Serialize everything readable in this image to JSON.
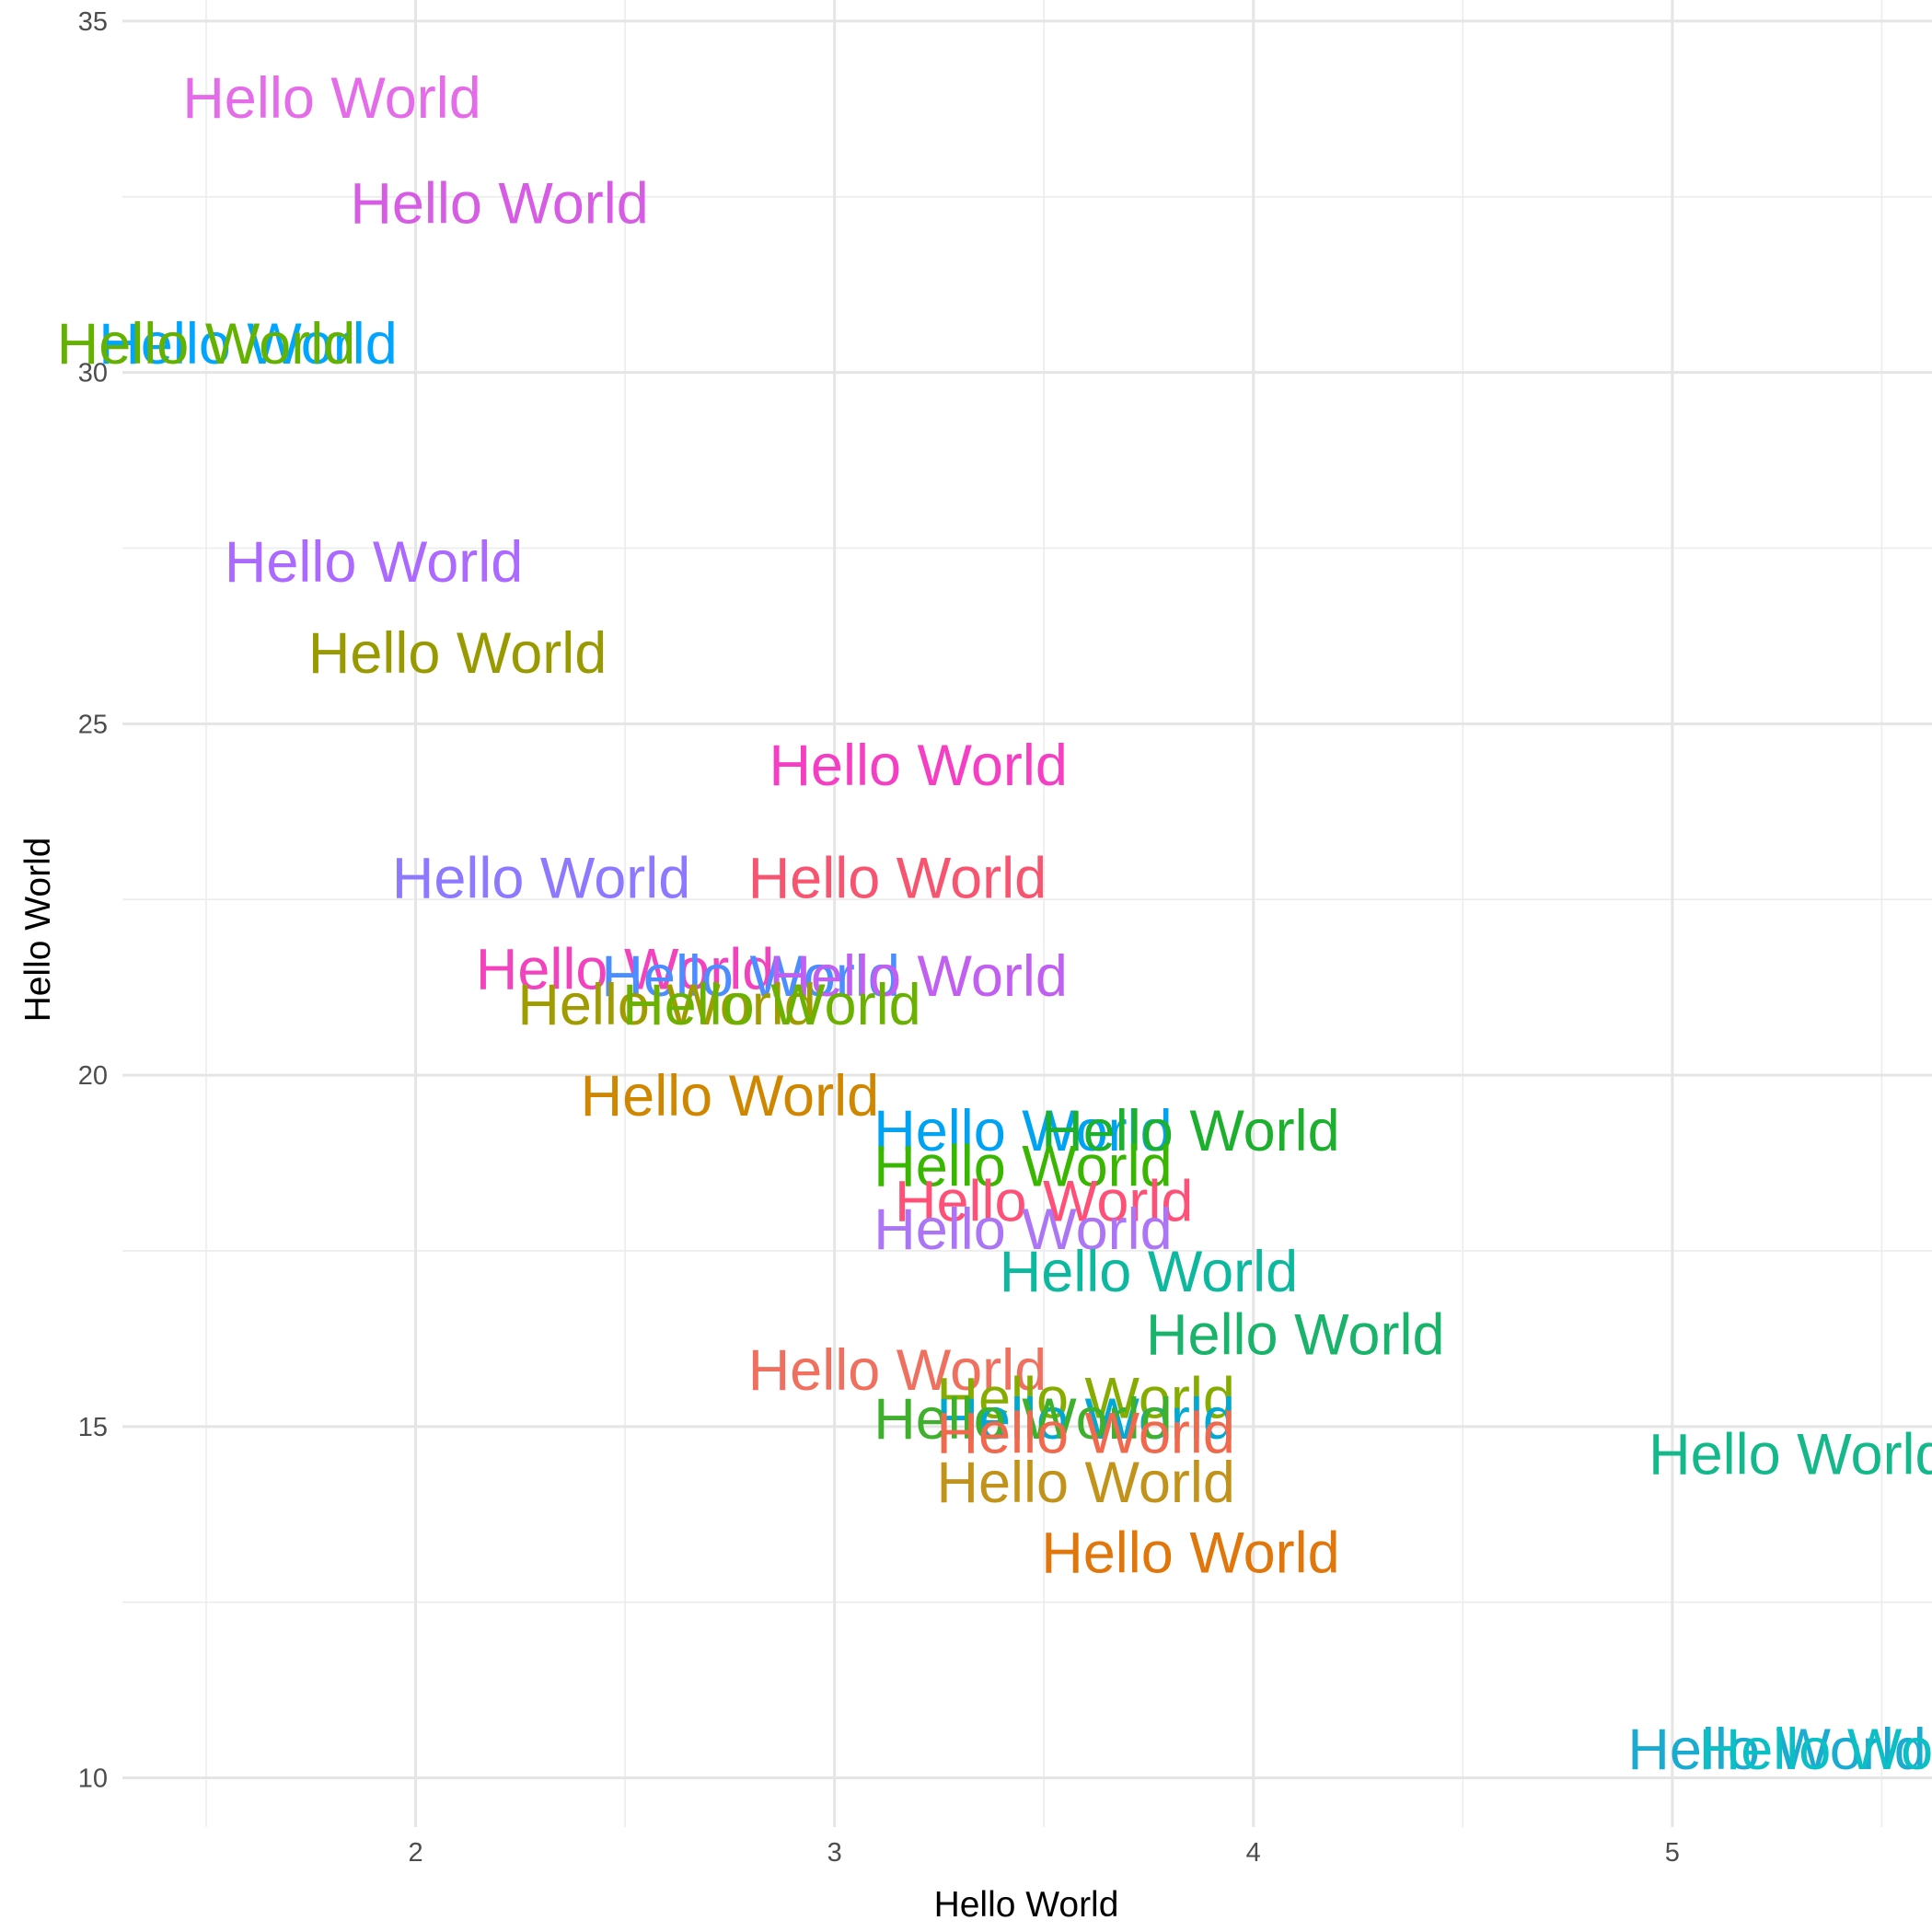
{
  "chart_data": {
    "type": "scatter",
    "title": "",
    "xlabel": "Hello World",
    "ylabel": "Hello World",
    "xlim": [
      1.3,
      5.62
    ],
    "ylim": [
      9.3,
      35.3
    ],
    "x_ticks": [
      2,
      3,
      4,
      5
    ],
    "y_ticks": [
      10,
      15,
      20,
      25,
      30,
      35
    ],
    "grid": true,
    "legend": "none",
    "points": [
      {
        "label": "Hello World",
        "x": 1.8,
        "y": 33.9,
        "color": "#E46CE8"
      },
      {
        "label": "Hello World",
        "x": 2.2,
        "y": 32.4,
        "color": "#D75CE4"
      },
      {
        "label": "Hello World",
        "x": 1.6,
        "y": 30.4,
        "color": "#00A5FF"
      },
      {
        "label": "Hello World",
        "x": 1.5,
        "y": 30.4,
        "color": "#64B200"
      },
      {
        "label": "Hello World",
        "x": 1.9,
        "y": 27.3,
        "color": "#AC69FF"
      },
      {
        "label": "Hello World",
        "x": 2.1,
        "y": 26.0,
        "color": "#999900"
      },
      {
        "label": "Hello World",
        "x": 3.2,
        "y": 24.4,
        "color": "#F53EC4"
      },
      {
        "label": "Hello World",
        "x": 2.3,
        "y": 22.8,
        "color": "#8E78FF"
      },
      {
        "label": "Hello World",
        "x": 3.15,
        "y": 22.8,
        "color": "#F6546F"
      },
      {
        "label": "Hello World",
        "x": 2.5,
        "y": 21.5,
        "color": "#F342BD"
      },
      {
        "label": "Hello World",
        "x": 2.8,
        "y": 21.4,
        "color": "#4C8DFF"
      },
      {
        "label": "Hello World",
        "x": 3.2,
        "y": 21.4,
        "color": "#C160F0"
      },
      {
        "label": "Hello World",
        "x": 2.6,
        "y": 21.0,
        "color": "#A09C00"
      },
      {
        "label": "Hello World",
        "x": 2.85,
        "y": 21.0,
        "color": "#6BB100"
      },
      {
        "label": "Hello World",
        "x": 2.75,
        "y": 19.7,
        "color": "#D08700"
      },
      {
        "label": "Hello World",
        "x": 3.45,
        "y": 19.2,
        "color": "#00A2F2"
      },
      {
        "label": "Hello World",
        "x": 3.85,
        "y": 19.2,
        "color": "#1CB02E"
      },
      {
        "label": "Hello World",
        "x": 3.45,
        "y": 18.7,
        "color": "#39B600"
      },
      {
        "label": "Hello World",
        "x": 3.5,
        "y": 18.2,
        "color": "#FF5178"
      },
      {
        "label": "Hello World",
        "x": 3.45,
        "y": 17.8,
        "color": "#AB75F5"
      },
      {
        "label": "Hello World",
        "x": 3.75,
        "y": 17.2,
        "color": "#0CB89E"
      },
      {
        "label": "Hello World",
        "x": 4.1,
        "y": 16.3,
        "color": "#19B36B"
      },
      {
        "label": "Hello World",
        "x": 3.15,
        "y": 15.8,
        "color": "#F07060"
      },
      {
        "label": "Hello World",
        "x": 3.6,
        "y": 15.4,
        "color": "#86AC00"
      },
      {
        "label": "Hello World",
        "x": 3.6,
        "y": 15.1,
        "color": "#00A8D5"
      },
      {
        "label": "Hello World",
        "x": 3.45,
        "y": 15.1,
        "color": "#3EB12C"
      },
      {
        "label": "Hello World",
        "x": 3.6,
        "y": 14.9,
        "color": "#F0694D"
      },
      {
        "label": "Hello World",
        "x": 3.6,
        "y": 14.2,
        "color": "#C2931A"
      },
      {
        "label": "Hello World",
        "x": 5.3,
        "y": 14.6,
        "color": "#14B88A"
      },
      {
        "label": "Hello World",
        "x": 3.85,
        "y": 13.2,
        "color": "#E1760A"
      },
      {
        "label": "Hello World",
        "x": 5.25,
        "y": 10.4,
        "color": "#1CABD0"
      },
      {
        "label": "Hello World",
        "x": 5.42,
        "y": 10.4,
        "color": "#0BBFC4"
      }
    ]
  }
}
